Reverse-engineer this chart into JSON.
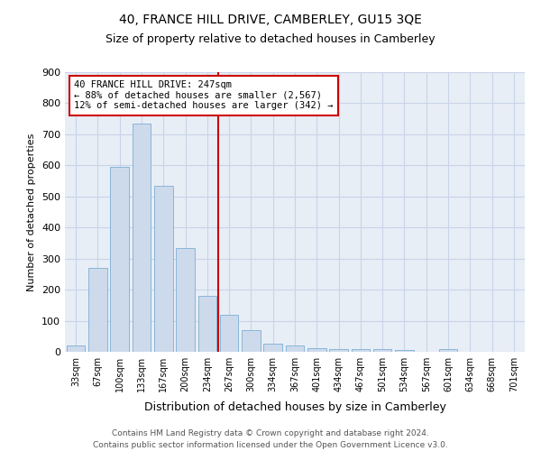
{
  "title": "40, FRANCE HILL DRIVE, CAMBERLEY, GU15 3QE",
  "subtitle": "Size of property relative to detached houses in Camberley",
  "xlabel": "Distribution of detached houses by size in Camberley",
  "ylabel": "Number of detached properties",
  "bar_labels": [
    "33sqm",
    "67sqm",
    "100sqm",
    "133sqm",
    "167sqm",
    "200sqm",
    "234sqm",
    "267sqm",
    "300sqm",
    "334sqm",
    "367sqm",
    "401sqm",
    "434sqm",
    "467sqm",
    "501sqm",
    "534sqm",
    "567sqm",
    "601sqm",
    "634sqm",
    "668sqm",
    "701sqm"
  ],
  "bar_values": [
    20,
    270,
    595,
    735,
    535,
    335,
    180,
    120,
    70,
    25,
    20,
    12,
    10,
    8,
    8,
    5,
    0,
    8,
    0,
    0,
    0
  ],
  "bar_color": "#cddaeb",
  "bar_edge_color": "#7bafd4",
  "vline_color": "#cc0000",
  "vline_x_index": 6.5,
  "annotation_text": "40 FRANCE HILL DRIVE: 247sqm\n← 88% of detached houses are smaller (2,567)\n12% of semi-detached houses are larger (342) →",
  "annotation_box_color": "#ffffff",
  "annotation_box_edge_color": "#cc0000",
  "ylim": [
    0,
    900
  ],
  "yticks": [
    0,
    100,
    200,
    300,
    400,
    500,
    600,
    700,
    800,
    900
  ],
  "grid_color": "#c8d4e8",
  "background_color": "#e8eef6",
  "footer_line1": "Contains HM Land Registry data © Crown copyright and database right 2024.",
  "footer_line2": "Contains public sector information licensed under the Open Government Licence v3.0.",
  "title_fontsize": 10,
  "subtitle_fontsize": 9,
  "annotation_fontsize": 7.5,
  "footer_fontsize": 6.5,
  "ylabel_fontsize": 8,
  "xlabel_fontsize": 9
}
